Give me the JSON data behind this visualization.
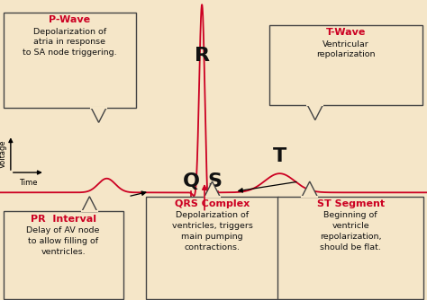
{
  "background_color": "#f5e6c8",
  "ecg_color": "#cc0022",
  "box_bg": "#f5e6c8",
  "box_edge": "#444444",
  "red_label_color": "#cc0022",
  "black_text_color": "#111111",
  "letter_color": "#111111",
  "p_wave_label": "P-Wave",
  "p_wave_desc": "Depolarization of\natria in response\nto SA node triggering.",
  "t_wave_label": "T-Wave",
  "t_wave_desc": "Ventricular\nrepolarization",
  "pr_label": "PR  Interval",
  "pr_desc": "Delay of AV node\nto allow filling of\nventricles.",
  "qrs_label": "QRS Complex",
  "qrs_desc": "Depolarization of\nventricles, triggers\nmain pumping\ncontractions.",
  "st_label": "ST Segment",
  "st_desc": "Beginning of\nventricle\nrepolarization,\nshould be flat.",
  "voltage_label": "Voltage",
  "time_label": "Time",
  "ecg_linewidth": 1.3,
  "figsize": [
    4.74,
    3.34
  ],
  "dpi": 100
}
